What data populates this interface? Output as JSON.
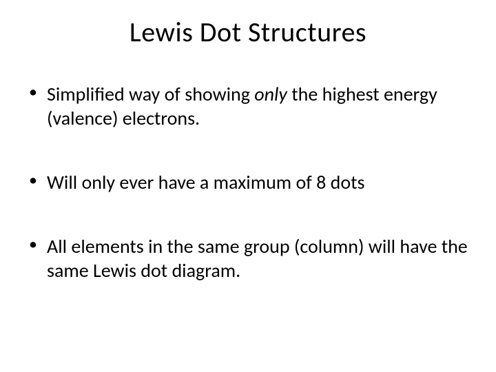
{
  "slide": {
    "title": "Lewis Dot Structures",
    "background_color": "#ffffff",
    "text_color": "#000000",
    "title_fontsize": 40,
    "body_fontsize": 28,
    "bullets": [
      {
        "pre": "Simplified way of showing ",
        "italic": "only",
        "post": " the highest energy (valence) electrons."
      },
      {
        "pre": "Will only ever have a maximum of 8 dots",
        "italic": "",
        "post": ""
      },
      {
        "pre": "All elements in the same group (column) will have the same Lewis dot diagram.",
        "italic": "",
        "post": ""
      }
    ]
  }
}
